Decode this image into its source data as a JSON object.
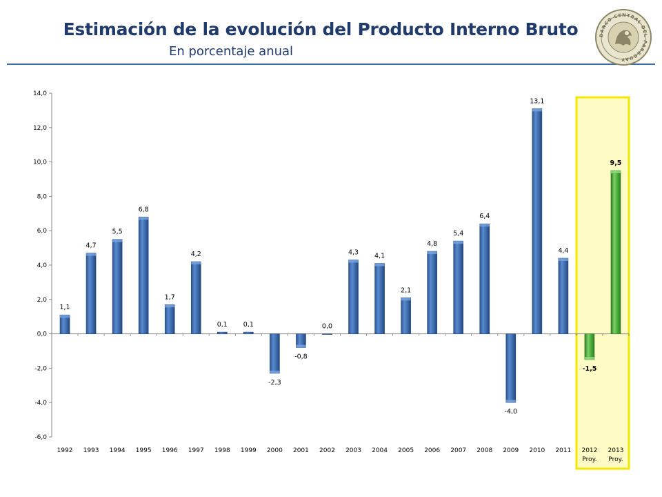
{
  "header": {
    "title": "Estimación de la evolución del  Producto Interno Bruto",
    "subtitle": "En porcentaje anual",
    "logo_text": "BANCO CENTRAL DEL PARAGUAY"
  },
  "colors": {
    "bar_actual": "#3f6eb0",
    "bar_actual_dark": "#24477c",
    "bar_projected": "#4caf3a",
    "bar_projected_dark": "#2e7a22",
    "highlight_fill": "#fffbc4",
    "highlight_border": "#f3e600",
    "title_color": "#1f3a6b"
  },
  "chart_data": {
    "type": "bar",
    "title": "Estimación de la evolución del  Producto Interno Bruto",
    "subtitle": "En porcentaje anual",
    "xlabel": "",
    "ylabel": "",
    "ylim": [
      -6,
      14
    ],
    "yticks": [
      "14,0",
      "12,0",
      "10,0",
      "8,0",
      "6,0",
      "4,0",
      "2,0",
      "0,0",
      "-2,0",
      "-4,0",
      "-6,0"
    ],
    "ytick_values": [
      14,
      12,
      10,
      8,
      6,
      4,
      2,
      0,
      -2,
      -4,
      -6
    ],
    "categories": [
      "1992",
      "1993",
      "1994",
      "1995",
      "1996",
      "1997",
      "1998",
      "1999",
      "2000",
      "2001",
      "2002",
      "2003",
      "2004",
      "2005",
      "2006",
      "2007",
      "2008",
      "2009",
      "2010",
      "2011",
      "2012",
      "2013"
    ],
    "category_sublabels": [
      "",
      "",
      "",
      "",
      "",
      "",
      "",
      "",
      "",
      "",
      "",
      "",
      "",
      "",
      "",
      "",
      "",
      "",
      "",
      "",
      "Proy.",
      "Proy."
    ],
    "values": [
      1.1,
      4.7,
      5.5,
      6.8,
      1.7,
      4.2,
      0.1,
      0.1,
      -2.3,
      -0.8,
      0.0,
      4.3,
      4.1,
      2.1,
      4.8,
      5.4,
      6.4,
      -4.0,
      13.1,
      4.4,
      -1.5,
      9.5
    ],
    "labels": [
      "1,1",
      "4,7",
      "5,5",
      "6,8",
      "1,7",
      "4,2",
      "0,1",
      "0,1",
      "-2,3",
      "-0,8",
      "0,0",
      "4,3",
      "4,1",
      "2,1",
      "4,8",
      "5,4",
      "6,4",
      "-4,0",
      "13,1",
      "4,4",
      "-1,5",
      "9,5"
    ],
    "projected": [
      false,
      false,
      false,
      false,
      false,
      false,
      false,
      false,
      false,
      false,
      false,
      false,
      false,
      false,
      false,
      false,
      false,
      false,
      false,
      false,
      true,
      true
    ],
    "grid": false,
    "highlight": "2012-2013 projected"
  }
}
